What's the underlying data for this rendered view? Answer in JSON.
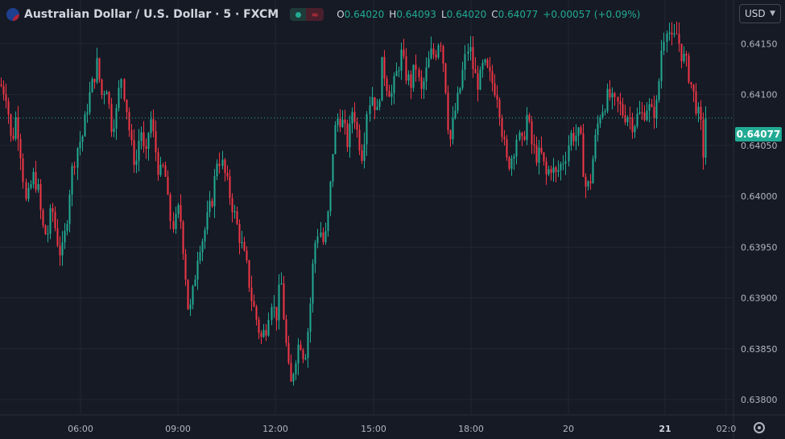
{
  "header": {
    "symbol": "Australian Dollar / U.S. Dollar · 5 · FXCM",
    "ohlc": [
      {
        "label": "O",
        "value": "0.64020"
      },
      {
        "label": "H",
        "value": "0.64093"
      },
      {
        "label": "L",
        "value": "0.64020"
      },
      {
        "label": "C",
        "value": "0.64077"
      }
    ],
    "change": "+0.00057 (+0.09%)"
  },
  "currency_selector": {
    "value": "USD"
  },
  "last_price": "0.64077",
  "colors": {
    "up": "#22ab94",
    "down": "#f23645",
    "background": "#161a25",
    "grid": "#232632"
  },
  "chart_data": {
    "type": "candlestick",
    "xlim": [
      0,
      911
    ],
    "ylim": [
      0.63785,
      0.64193
    ],
    "x_ticks": [
      {
        "label": "06:00",
        "x": 100
      },
      {
        "label": "09:00",
        "x": 221
      },
      {
        "label": "12:00",
        "x": 342
      },
      {
        "label": "15:00",
        "x": 464
      },
      {
        "label": "18:00",
        "x": 585
      },
      {
        "label": "20",
        "x": 706
      },
      {
        "label": "21",
        "x": 826,
        "bold": true
      },
      {
        "label": "02:0",
        "x": 902
      }
    ],
    "y_ticks": [
      "0.64150",
      "0.64100",
      "0.64050",
      "0.64000",
      "0.63950",
      "0.63900",
      "0.63850",
      "0.63800"
    ],
    "last_price": 0.64077,
    "close_path": [
      [
        0,
        0.6411
      ],
      [
        8,
        0.641
      ],
      [
        14,
        0.6405
      ],
      [
        20,
        0.6408
      ],
      [
        26,
        0.6404
      ],
      [
        32,
        0.6399
      ],
      [
        40,
        0.6402
      ],
      [
        46,
        0.6401
      ],
      [
        52,
        0.6397
      ],
      [
        58,
        0.6396
      ],
      [
        64,
        0.6399
      ],
      [
        70,
        0.6396
      ],
      [
        76,
        0.6394
      ],
      [
        82,
        0.6397
      ],
      [
        88,
        0.6402
      ],
      [
        96,
        0.6405
      ],
      [
        102,
        0.6406
      ],
      [
        108,
        0.6409
      ],
      [
        114,
        0.6411
      ],
      [
        120,
        0.6413
      ],
      [
        126,
        0.641
      ],
      [
        132,
        0.6411
      ],
      [
        138,
        0.6407
      ],
      [
        144,
        0.6408
      ],
      [
        150,
        0.6412
      ],
      [
        156,
        0.6409
      ],
      [
        162,
        0.6405
      ],
      [
        168,
        0.6403
      ],
      [
        174,
        0.6407
      ],
      [
        180,
        0.6403
      ],
      [
        186,
        0.6408
      ],
      [
        192,
        0.6405
      ],
      [
        198,
        0.6402
      ],
      [
        204,
        0.6403
      ],
      [
        210,
        0.6398
      ],
      [
        216,
        0.6397
      ],
      [
        222,
        0.6399
      ],
      [
        228,
        0.6394
      ],
      [
        234,
        0.6388
      ],
      [
        240,
        0.6391
      ],
      [
        246,
        0.6395
      ],
      [
        252,
        0.6396
      ],
      [
        258,
        0.6398
      ],
      [
        264,
        0.64
      ],
      [
        270,
        0.6404
      ],
      [
        276,
        0.6403
      ],
      [
        282,
        0.6401
      ],
      [
        288,
        0.6399
      ],
      [
        294,
        0.6397
      ],
      [
        300,
        0.6395
      ],
      [
        306,
        0.6393
      ],
      [
        312,
        0.639
      ],
      [
        318,
        0.6388
      ],
      [
        324,
        0.6386
      ],
      [
        330,
        0.6387
      ],
      [
        336,
        0.639
      ],
      [
        342,
        0.6388
      ],
      [
        348,
        0.6392
      ],
      [
        354,
        0.6386
      ],
      [
        360,
        0.6381
      ],
      [
        366,
        0.6384
      ],
      [
        372,
        0.6386
      ],
      [
        378,
        0.6384
      ],
      [
        384,
        0.6388
      ],
      [
        390,
        0.6395
      ],
      [
        396,
        0.6397
      ],
      [
        402,
        0.6395
      ],
      [
        408,
        0.6399
      ],
      [
        414,
        0.6406
      ],
      [
        420,
        0.6408
      ],
      [
        426,
        0.6407
      ],
      [
        432,
        0.6405
      ],
      [
        438,
        0.6409
      ],
      [
        444,
        0.6406
      ],
      [
        450,
        0.6404
      ],
      [
        456,
        0.6409
      ],
      [
        462,
        0.641
      ],
      [
        468,
        0.6408
      ],
      [
        474,
        0.6413
      ],
      [
        480,
        0.6411
      ],
      [
        486,
        0.641
      ],
      [
        492,
        0.6412
      ],
      [
        498,
        0.6414
      ],
      [
        504,
        0.6412
      ],
      [
        510,
        0.6411
      ],
      [
        516,
        0.6413
      ],
      [
        522,
        0.641
      ],
      [
        528,
        0.6412
      ],
      [
        534,
        0.6414
      ],
      [
        540,
        0.6414
      ],
      [
        546,
        0.6416
      ],
      [
        552,
        0.6412
      ],
      [
        558,
        0.6405
      ],
      [
        564,
        0.6408
      ],
      [
        570,
        0.641
      ],
      [
        576,
        0.6413
      ],
      [
        582,
        0.6415
      ],
      [
        588,
        0.6412
      ],
      [
        594,
        0.6411
      ],
      [
        600,
        0.6413
      ],
      [
        606,
        0.6412
      ],
      [
        612,
        0.6411
      ],
      [
        618,
        0.641
      ],
      [
        624,
        0.6406
      ],
      [
        630,
        0.6403
      ],
      [
        636,
        0.6404
      ],
      [
        642,
        0.6406
      ],
      [
        648,
        0.6405
      ],
      [
        654,
        0.6408
      ],
      [
        660,
        0.6405
      ],
      [
        666,
        0.6404
      ],
      [
        672,
        0.6404
      ],
      [
        678,
        0.6402
      ],
      [
        684,
        0.6403
      ],
      [
        690,
        0.6402
      ],
      [
        696,
        0.6403
      ],
      [
        702,
        0.6404
      ],
      [
        708,
        0.6406
      ],
      [
        714,
        0.6406
      ],
      [
        720,
        0.6406
      ],
      [
        726,
        0.6401
      ],
      [
        732,
        0.6401
      ],
      [
        738,
        0.6405
      ],
      [
        744,
        0.6408
      ],
      [
        750,
        0.6409
      ],
      [
        756,
        0.641
      ],
      [
        762,
        0.6409
      ],
      [
        768,
        0.6409
      ],
      [
        774,
        0.6408
      ],
      [
        780,
        0.6408
      ],
      [
        786,
        0.6407
      ],
      [
        792,
        0.6408
      ],
      [
        798,
        0.6408
      ],
      [
        804,
        0.6409
      ],
      [
        810,
        0.6408
      ],
      [
        816,
        0.6409
      ],
      [
        822,
        0.6415
      ],
      [
        828,
        0.6417
      ],
      [
        834,
        0.6415
      ],
      [
        840,
        0.6416
      ],
      [
        846,
        0.6414
      ],
      [
        852,
        0.6413
      ],
      [
        858,
        0.6411
      ],
      [
        864,
        0.6409
      ],
      [
        870,
        0.6407
      ],
      [
        876,
        0.6402
      ],
      [
        878,
        0.64077
      ]
    ]
  },
  "settings_icon": "gear-icon"
}
